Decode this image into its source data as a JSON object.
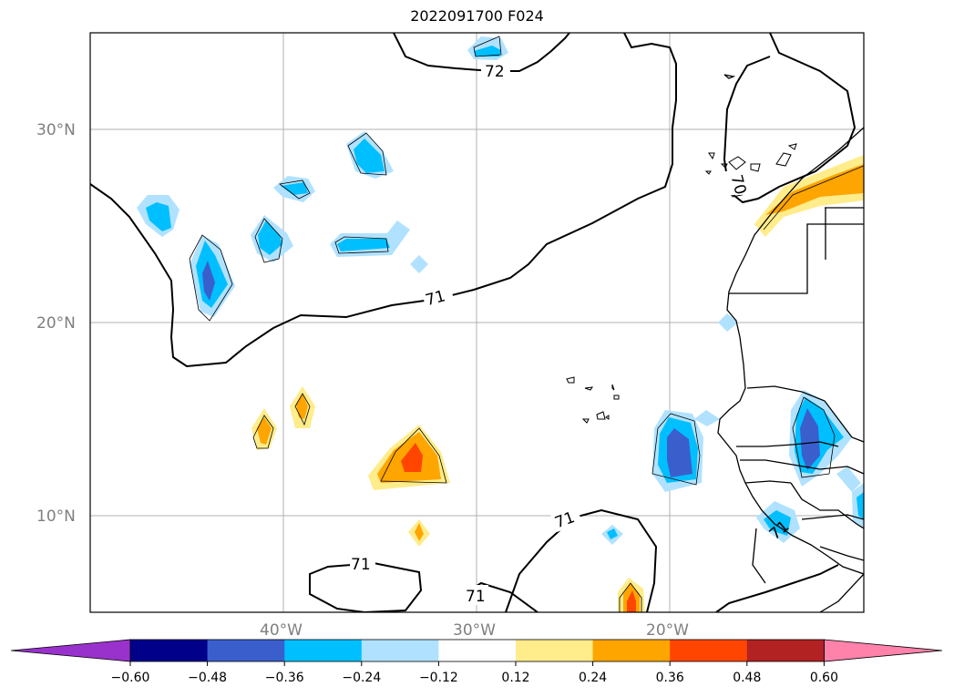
{
  "title": "2022091700 F024",
  "map": {
    "lat_labels": [
      "30°N",
      "20°N",
      "10°N"
    ],
    "lon_labels": [
      "40°W",
      "30°W",
      "20°W"
    ],
    "contour_labels": [
      "72",
      "71",
      "70",
      "71",
      "71",
      "71",
      "71"
    ]
  },
  "colorbar": {
    "ticks": [
      "−0.60",
      "−0.48",
      "−0.36",
      "−0.24",
      "−0.12",
      "0.12",
      "0.24",
      "0.36",
      "0.48",
      "0.60"
    ],
    "colors": [
      "#9932cc",
      "#00008b",
      "#3a5fcd",
      "#00bfff",
      "#b0e2ff",
      "#ffffff",
      "#ffec8b",
      "#ffa500",
      "#ff4500",
      "#b22222",
      "#ff82ab"
    ]
  }
}
